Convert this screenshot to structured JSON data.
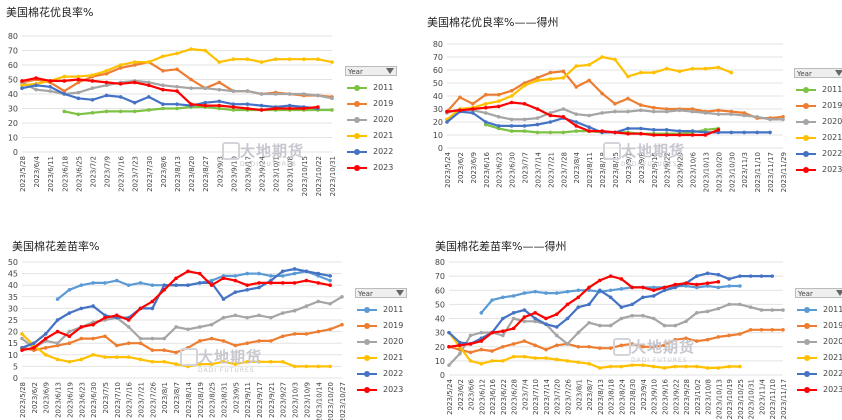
{
  "chart_data": [
    {
      "type": "line",
      "title": "美国棉花优良率%",
      "ylim": [
        0,
        80
      ],
      "yticks": [
        "0",
        "10",
        "20",
        "30",
        "40",
        "50",
        "60",
        "70",
        "80"
      ],
      "categories": [
        "2023/5/28",
        "2023/6/4",
        "2023/6/11",
        "2023/6/18",
        "2023/6/25",
        "2023/7/2",
        "2023/7/9",
        "2023/7/16",
        "2023/7/23",
        "2023/7/30",
        "2023/8/6",
        "2023/8/13",
        "2023/8/20",
        "2023/8/27",
        "2023/9/3",
        "2023/9/10",
        "2023/9/17",
        "2023/9/24",
        "2023/10/1",
        "2023/10/8",
        "2023/10/15",
        "2023/10/22",
        "2023/10/31"
      ],
      "legend_title": "Year",
      "series": [
        {
          "name": "2011",
          "color": "#7dc242",
          "values": [
            null,
            null,
            null,
            28,
            26,
            27,
            28,
            28,
            28,
            29,
            30,
            30,
            31,
            31,
            30,
            29,
            29,
            29,
            29,
            29,
            29,
            29,
            29
          ]
        },
        {
          "name": "2019",
          "color": "#ed7d31",
          "values": [
            48,
            50,
            48,
            42,
            48,
            52,
            54,
            58,
            60,
            62,
            56,
            57,
            50,
            44,
            48,
            42,
            42,
            40,
            41,
            40,
            39,
            39,
            38
          ]
        },
        {
          "name": "2020",
          "color": "#a5a5a5",
          "values": [
            48,
            43,
            42,
            40,
            41,
            44,
            46,
            48,
            49,
            48,
            46,
            45,
            44,
            44,
            43,
            42,
            42,
            40,
            40,
            40,
            40,
            39,
            37
          ]
        },
        {
          "name": "2021",
          "color": "#ffc000",
          "values": [
            46,
            47,
            49,
            52,
            52,
            53,
            56,
            60,
            62,
            62,
            66,
            68,
            71,
            70,
            62,
            64,
            64,
            62,
            64,
            64,
            64,
            64,
            62
          ]
        },
        {
          "name": "2022",
          "color": "#4472c4",
          "values": [
            44,
            46,
            45,
            40,
            37,
            36,
            39,
            38,
            34,
            38,
            33,
            33,
            32,
            34,
            35,
            33,
            33,
            32,
            31,
            32,
            31,
            30,
            null
          ]
        },
        {
          "name": "2023",
          "color": "#ff0000",
          "values": [
            49,
            51,
            49,
            49,
            50,
            49,
            48,
            47,
            48,
            46,
            43,
            42,
            33,
            32,
            32,
            31,
            30,
            29,
            30,
            30,
            30,
            31,
            null
          ]
        }
      ]
    },
    {
      "type": "line",
      "title": "美国棉花优良率%——得州",
      "ylim": [
        0,
        80
      ],
      "yticks": [
        "0",
        "10",
        "20",
        "30",
        "40",
        "50",
        "60",
        "70",
        "80"
      ],
      "categories": [
        "2023/5/24",
        "2023/6/2",
        "2023/6/9",
        "2023/6/16",
        "2023/6/23",
        "2023/6/30",
        "2023/7/7",
        "2023/7/14",
        "2023/7/21",
        "2023/7/28",
        "2023/8/4",
        "2023/8/11",
        "2023/8/18",
        "2023/8/25",
        "2023/9/1",
        "2023/9/8",
        "2023/9/15",
        "2023/9/22",
        "2023/9/29",
        "2023/10/6",
        "2023/10/13",
        "2023/10/20",
        "2023/10/30",
        "2023/11/3",
        "2023/11/10",
        "2023/11/17",
        "2023/11/29"
      ],
      "legend_title": "Year",
      "series": [
        {
          "name": "2011",
          "color": "#7dc242",
          "values": [
            null,
            null,
            null,
            18,
            15,
            13,
            13,
            12,
            12,
            12,
            13,
            13,
            12,
            12,
            12,
            11,
            11,
            11,
            11,
            12,
            14,
            15,
            null,
            null,
            null,
            null,
            null
          ]
        },
        {
          "name": "2019",
          "color": "#ed7d31",
          "values": [
            28,
            39,
            34,
            41,
            41,
            44,
            50,
            54,
            58,
            59,
            47,
            52,
            42,
            34,
            38,
            33,
            31,
            30,
            30,
            30,
            28,
            29,
            28,
            27,
            23,
            23,
            24
          ]
        },
        {
          "name": "2020",
          "color": "#a5a5a5",
          "values": [
            27,
            30,
            29,
            27,
            24,
            22,
            22,
            23,
            27,
            30,
            26,
            25,
            27,
            28,
            28,
            29,
            28,
            28,
            29,
            28,
            27,
            26,
            26,
            25,
            24,
            22,
            22
          ]
        },
        {
          "name": "2021",
          "color": "#ffc000",
          "values": [
            22,
            30,
            31,
            34,
            36,
            40,
            48,
            52,
            53,
            54,
            63,
            64,
            70,
            68,
            55,
            58,
            58,
            61,
            59,
            61,
            61,
            62,
            58,
            null,
            null,
            null,
            null
          ]
        },
        {
          "name": "2022",
          "color": "#4472c4",
          "values": [
            20,
            28,
            27,
            20,
            17,
            17,
            17,
            18,
            20,
            23,
            20,
            16,
            12,
            12,
            15,
            15,
            14,
            14,
            13,
            13,
            12,
            12,
            12,
            12,
            12,
            12,
            null
          ]
        },
        {
          "name": "2023",
          "color": "#ff0000",
          "values": [
            28,
            29,
            30,
            31,
            32,
            35,
            34,
            30,
            25,
            24,
            17,
            13,
            13,
            12,
            11,
            11,
            10,
            10,
            10,
            10,
            10,
            14,
            null,
            null,
            null,
            null,
            null
          ]
        }
      ]
    },
    {
      "type": "line",
      "title": "美国棉花差苗率%",
      "ylim": [
        0,
        50
      ],
      "yticks": [
        "0",
        "5",
        "10",
        "15",
        "20",
        "25",
        "30",
        "35",
        "40",
        "45",
        "50"
      ],
      "categories": [
        "2023/5/28",
        "2023/6/2",
        "2023/6/9",
        "2023/6/13",
        "2023/6/19",
        "2023/6/23",
        "2023/6/30",
        "2023/7/5",
        "2023/7/10",
        "2023/7/16",
        "2023/7/21",
        "2023/7/26",
        "2023/8/1",
        "2023/8/7",
        "2023/8/14",
        "2023/8/19",
        "2023/8/25",
        "2023/8/31",
        "2023/9/5",
        "2023/9/11",
        "2023/9/17",
        "2023/9/21",
        "2023/9/27",
        "2023/10/3",
        "2023/10/9",
        "2023/10/14",
        "2023/10/20",
        "2023/10/27"
      ],
      "legend_title": "Year",
      "series": [
        {
          "name": "2011",
          "color": "#5b9bd5",
          "values": [
            null,
            null,
            null,
            34,
            38,
            40,
            41,
            41,
            42,
            40,
            41,
            40,
            40,
            40,
            40,
            41,
            42,
            44,
            44,
            45,
            45,
            44,
            44,
            45,
            46,
            44,
            42,
            null
          ]
        },
        {
          "name": "2019",
          "color": "#ed7d31",
          "values": [
            13,
            12,
            13,
            14,
            15,
            17,
            17,
            18,
            14,
            15,
            15,
            12,
            12,
            11,
            13,
            16,
            17,
            16,
            14,
            15,
            16,
            16,
            18,
            19,
            19,
            20,
            21,
            23
          ]
        },
        {
          "name": "2020",
          "color": "#a5a5a5",
          "values": [
            17,
            13,
            16,
            15,
            20,
            22,
            24,
            25,
            26,
            22,
            17,
            17,
            17,
            22,
            21,
            22,
            23,
            26,
            27,
            26,
            27,
            26,
            28,
            29,
            31,
            33,
            32,
            35
          ]
        },
        {
          "name": "2021",
          "color": "#ffc000",
          "values": [
            19,
            14,
            10,
            8,
            7,
            8,
            10,
            9,
            9,
            9,
            8,
            7,
            7,
            6,
            5,
            6,
            6,
            7,
            6,
            7,
            7,
            7,
            7,
            5,
            5,
            5,
            5,
            null
          ]
        },
        {
          "name": "2022",
          "color": "#4472c4",
          "values": [
            13,
            15,
            19,
            25,
            28,
            30,
            31,
            27,
            26,
            26,
            30,
            30,
            40,
            40,
            40,
            41,
            41,
            34,
            37,
            38,
            39,
            42,
            46,
            47,
            46,
            45,
            44,
            null
          ]
        },
        {
          "name": "2023",
          "color": "#ff0000",
          "values": [
            12,
            13,
            17,
            20,
            18,
            22,
            23,
            26,
            27,
            25,
            30,
            33,
            38,
            43,
            46,
            45,
            40,
            43,
            42,
            40,
            41,
            41,
            41,
            41,
            42,
            41,
            40,
            null
          ]
        }
      ]
    },
    {
      "type": "line",
      "title": "美国棉花差苗率%——得州",
      "ylim": [
        0,
        80
      ],
      "yticks": [
        "0",
        "10",
        "20",
        "30",
        "40",
        "50",
        "60",
        "70",
        "80"
      ],
      "categories": [
        "2023/5/24",
        "2023/6/2",
        "2023/6/6",
        "2023/6/12",
        "2023/6/16",
        "2023/6/22",
        "2023/6/28",
        "2023/7/4",
        "2023/7/10",
        "2023/7/14",
        "2023/7/20",
        "2023/7/26",
        "2023/8/1",
        "2023/8/7",
        "2023/8/13",
        "2023/8/18",
        "2023/8/24",
        "2023/8/30",
        "2023/9/4",
        "2023/9/10",
        "2023/9/16",
        "2023/9/22",
        "2023/9/28",
        "2023/10/2",
        "2023/10/8",
        "2023/10/13",
        "2023/10/19",
        "2023/10/25",
        "2023/10/31",
        "2023/11/4",
        "2023/11/10",
        "2023/11/17"
      ],
      "legend_title": "Year",
      "series": [
        {
          "name": "2011",
          "color": "#5b9bd5",
          "values": [
            null,
            null,
            null,
            44,
            53,
            55,
            56,
            58,
            59,
            58,
            58,
            59,
            60,
            60,
            59,
            60,
            61,
            62,
            62,
            62,
            62,
            63,
            63,
            62,
            63,
            62,
            63,
            63,
            null,
            null,
            null,
            null
          ]
        },
        {
          "name": "2019",
          "color": "#ed7d31",
          "values": [
            20,
            18,
            16,
            18,
            17,
            20,
            22,
            24,
            21,
            18,
            21,
            22,
            20,
            20,
            19,
            19,
            21,
            22,
            20,
            20,
            21,
            25,
            26,
            24,
            25,
            27,
            28,
            29,
            32,
            32,
            32,
            32
          ]
        },
        {
          "name": "2020",
          "color": "#a5a5a5",
          "values": [
            7,
            15,
            28,
            30,
            30,
            28,
            40,
            38,
            38,
            36,
            28,
            22,
            30,
            37,
            35,
            35,
            40,
            42,
            42,
            40,
            35,
            35,
            38,
            44,
            45,
            47,
            50,
            50,
            48,
            46,
            46,
            46
          ]
        },
        {
          "name": "2021",
          "color": "#ffc000",
          "values": [
            30,
            20,
            10,
            8,
            10,
            10,
            13,
            13,
            12,
            12,
            11,
            10,
            9,
            8,
            5,
            6,
            6,
            7,
            7,
            6,
            5,
            6,
            6,
            6,
            5,
            5,
            6,
            6,
            null,
            null,
            null,
            null
          ]
        },
        {
          "name": "2022",
          "color": "#4472c4",
          "values": [
            30,
            23,
            22,
            26,
            30,
            40,
            44,
            46,
            40,
            36,
            34,
            40,
            48,
            50,
            60,
            55,
            48,
            50,
            55,
            56,
            60,
            62,
            65,
            70,
            72,
            71,
            68,
            70,
            70,
            70,
            70,
            null
          ]
        },
        {
          "name": "2023",
          "color": "#ff0000",
          "values": [
            20,
            21,
            22,
            24,
            30,
            31,
            33,
            41,
            44,
            40,
            43,
            50,
            55,
            62,
            67,
            70,
            68,
            62,
            62,
            60,
            62,
            64,
            65,
            64,
            65,
            66,
            null,
            null,
            null,
            null,
            null,
            null
          ]
        }
      ]
    }
  ],
  "watermark": {
    "cn": "大地期货",
    "en": "DADI FUTURES"
  }
}
